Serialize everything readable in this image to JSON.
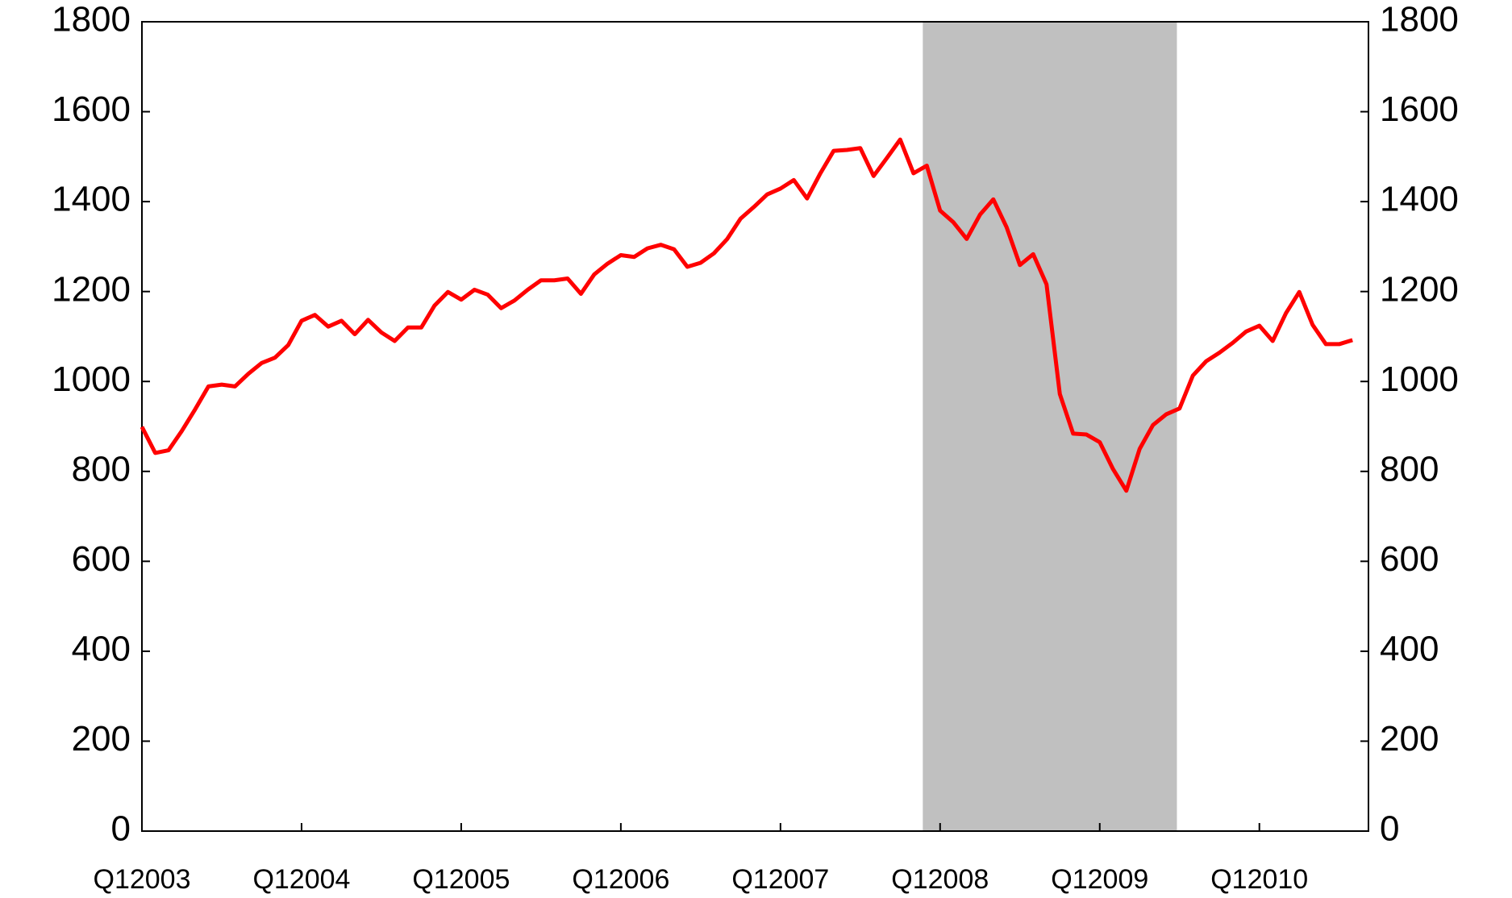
{
  "chart_data": {
    "type": "line",
    "categories": [
      "Q12003",
      null,
      null,
      null,
      null,
      null,
      null,
      null,
      null,
      null,
      null,
      null,
      "Q12004",
      null,
      null,
      null,
      null,
      null,
      null,
      null,
      null,
      null,
      null,
      null,
      "Q12005",
      null,
      null,
      null,
      null,
      null,
      null,
      null,
      null,
      null,
      null,
      null,
      "Q12006",
      null,
      null,
      null,
      null,
      null,
      null,
      null,
      null,
      null,
      null,
      null,
      "Q12007",
      null,
      null,
      null,
      null,
      null,
      null,
      null,
      null,
      null,
      null,
      null,
      "Q12008",
      null,
      null,
      null,
      null,
      null,
      null,
      null,
      null,
      null,
      null,
      null,
      "Q12009",
      null,
      null,
      null,
      null,
      null,
      null,
      null,
      null,
      null,
      null,
      null,
      "Q12010",
      null,
      null,
      null,
      null,
      null,
      null,
      null
    ],
    "series": [
      {
        "color": "#ff0000",
        "values": [
          899,
          841,
          847,
          890,
          938,
          989,
          993,
          989,
          1017,
          1041,
          1053,
          1081,
          1135,
          1148,
          1122,
          1135,
          1105,
          1137,
          1109,
          1090,
          1120,
          1120,
          1169,
          1199,
          1182,
          1204,
          1193,
          1163,
          1180,
          1204,
          1225,
          1225,
          1229,
          1195,
          1238,
          1262,
          1281,
          1277,
          1296,
          1304,
          1294,
          1255,
          1264,
          1285,
          1317,
          1362,
          1388,
          1416,
          1429,
          1448,
          1407,
          1463,
          1513,
          1515,
          1519,
          1457,
          1497,
          1538,
          1463,
          1480,
          1380,
          1354,
          1317,
          1371,
          1405,
          1343,
          1259,
          1283,
          1216,
          972,
          884,
          882,
          865,
          805,
          757,
          850,
          903,
          927,
          940,
          1013,
          1045,
          1064,
          1086,
          1111,
          1124,
          1090,
          1152,
          1199,
          1126,
          1083,
          1083,
          1092
        ]
      }
    ],
    "xlim": [
      0,
      92.2
    ],
    "shade": {
      "from": 58.7,
      "to": 77.8,
      "color": "#c0c0c0"
    },
    "ylim": [
      0,
      1800
    ],
    "yticks": [
      0,
      200,
      400,
      600,
      800,
      1000,
      1200,
      1400,
      1600,
      1800
    ],
    "y2lim": [
      0,
      1800
    ],
    "y2ticks": [
      0,
      200,
      400,
      600,
      800,
      1000,
      1200,
      1400,
      1600,
      1800
    ]
  }
}
